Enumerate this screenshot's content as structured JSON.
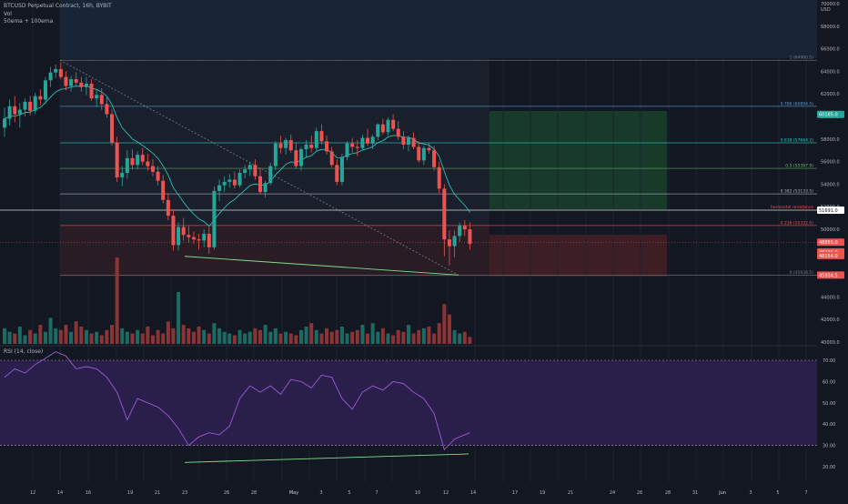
{
  "header": {
    "symbol": "BTCUSD Perpetual Contract, 16h, BYBIT",
    "vol_label": "Vol",
    "ema_label": "50ema + 100ema",
    "rsi_label": "RSI (14, close)"
  },
  "colors": {
    "background": "#131722",
    "up": "#26a69a",
    "down": "#ef5350",
    "ema": "#2bd0c4",
    "rsi": "#9c5ad6",
    "rsi_band": "#2a1f4a",
    "divergence": "#7ee08a",
    "long_target_zone": "#173a2a",
    "long_stop_zone": "#3d1e24",
    "upper_zone": "#172536"
  },
  "chart_data": [
    {
      "type": "candlestick",
      "title": "BTCUSD Perpetual Contract, 16h, BYBIT",
      "ylim": [
        39500,
        70000
      ],
      "x_tick_labels": [
        "12",
        "14",
        "16",
        "19",
        "21",
        "23",
        "26",
        "28",
        "May",
        "3",
        "5",
        "7",
        "10",
        "12",
        "14",
        "17",
        "19",
        "21",
        "24",
        "26",
        "28",
        "31",
        "Jun",
        "3",
        "5",
        "7"
      ],
      "y_tick_labels": [
        "40000.0",
        "42000.0",
        "44000.0",
        "46000.0",
        "48000.0",
        "50000.0",
        "52000.0",
        "54000.0",
        "56000.0",
        "58000.0",
        "60000.0",
        "62000.0",
        "64000.0",
        "66000.0",
        "68000.0",
        "70000.0"
      ],
      "unit_label": "USD",
      "candles": [
        [
          59000,
          60800,
          58200,
          59800
        ],
        [
          59800,
          61500,
          59200,
          60900
        ],
        [
          60900,
          61800,
          59500,
          60200
        ],
        [
          60200,
          61200,
          59000,
          60600
        ],
        [
          60600,
          61600,
          60000,
          61300
        ],
        [
          61300,
          61800,
          60100,
          60500
        ],
        [
          60500,
          62100,
          60200,
          61800
        ],
        [
          61800,
          62400,
          61000,
          61500
        ],
        [
          61500,
          63500,
          61100,
          63200
        ],
        [
          63200,
          64400,
          62600,
          63900
        ],
        [
          63900,
          64600,
          63400,
          64200
        ],
        [
          64200,
          64800,
          63300,
          63500
        ],
        [
          63500,
          64000,
          62300,
          62700
        ],
        [
          62700,
          63600,
          62200,
          63300
        ],
        [
          63300,
          63900,
          62700,
          63000
        ],
        [
          63000,
          63500,
          62200,
          62600
        ],
        [
          62600,
          63500,
          61900,
          62900
        ],
        [
          62900,
          63300,
          61400,
          61600
        ],
        [
          61600,
          62400,
          60800,
          61900
        ],
        [
          61900,
          62500,
          60600,
          61100
        ],
        [
          61100,
          61700,
          59900,
          60200
        ],
        [
          60200,
          60600,
          57400,
          57700
        ],
        [
          57700,
          58200,
          54200,
          54600
        ],
        [
          54600,
          55600,
          53800,
          55000
        ],
        [
          55000,
          57000,
          54500,
          56300
        ],
        [
          56300,
          57100,
          55300,
          55700
        ],
        [
          55700,
          56900,
          55300,
          56600
        ],
        [
          56600,
          57200,
          55700,
          56000
        ],
        [
          56000,
          56700,
          55200,
          55600
        ],
        [
          55600,
          56200,
          54700,
          55100
        ],
        [
          55100,
          55600,
          53900,
          54300
        ],
        [
          54300,
          54800,
          52300,
          52600
        ],
        [
          52600,
          53200,
          50800,
          51200
        ],
        [
          51200,
          51700,
          48100,
          48600
        ],
        [
          48600,
          50600,
          48100,
          50200
        ],
        [
          50200,
          51000,
          49000,
          49500
        ],
        [
          49500,
          50300,
          48800,
          49300
        ],
        [
          49300,
          49800,
          48700,
          49100
        ],
        [
          49100,
          49600,
          48200,
          49000
        ],
        [
          49000,
          50000,
          48400,
          49600
        ],
        [
          49600,
          50200,
          47800,
          48400
        ],
        [
          48400,
          53800,
          48200,
          53400
        ],
        [
          53400,
          54400,
          52500,
          53900
        ],
        [
          53900,
          54700,
          53300,
          54200
        ],
        [
          54200,
          54900,
          53700,
          54400
        ],
        [
          54400,
          55100,
          53600,
          53900
        ],
        [
          53900,
          55300,
          53700,
          55000
        ],
        [
          55000,
          55700,
          54500,
          55300
        ],
        [
          55300,
          56000,
          54700,
          55700
        ],
        [
          55700,
          56200,
          54400,
          54700
        ],
        [
          54700,
          55400,
          53100,
          53300
        ],
        [
          53300,
          54300,
          52800,
          54100
        ],
        [
          54100,
          55900,
          53900,
          55600
        ],
        [
          55600,
          57800,
          55200,
          57600
        ],
        [
          57600,
          58300,
          56700,
          57200
        ],
        [
          57200,
          58100,
          56600,
          57900
        ],
        [
          57900,
          58400,
          56800,
          57000
        ],
        [
          57000,
          57700,
          55400,
          55600
        ],
        [
          55600,
          57300,
          55200,
          57100
        ],
        [
          57100,
          57900,
          56400,
          57500
        ],
        [
          57500,
          58300,
          56800,
          57200
        ],
        [
          57200,
          59000,
          56900,
          58700
        ],
        [
          58700,
          59300,
          57500,
          57800
        ],
        [
          57800,
          58300,
          56600,
          56900
        ],
        [
          56900,
          57300,
          55500,
          55700
        ],
        [
          55700,
          56200,
          53900,
          54200
        ],
        [
          54200,
          56700,
          53900,
          56400
        ],
        [
          56400,
          57800,
          56100,
          57600
        ],
        [
          57600,
          58100,
          56800,
          57300
        ],
        [
          57300,
          57900,
          56500,
          57200
        ],
        [
          57200,
          58400,
          57000,
          58100
        ],
        [
          58100,
          58900,
          57400,
          57600
        ],
        [
          57600,
          58400,
          57100,
          58200
        ],
        [
          58200,
          59400,
          57900,
          59300
        ],
        [
          59300,
          59800,
          58400,
          58600
        ],
        [
          58600,
          59900,
          58300,
          59700
        ],
        [
          59700,
          60200,
          58700,
          58900
        ],
        [
          58900,
          59600,
          57900,
          58200
        ],
        [
          58200,
          58700,
          57100,
          57500
        ],
        [
          57500,
          58300,
          56900,
          58100
        ],
        [
          58100,
          58600,
          57100,
          57300
        ],
        [
          57300,
          57800,
          55900,
          56100
        ],
        [
          56100,
          57400,
          55700,
          57200
        ],
        [
          57200,
          57700,
          56700,
          57000
        ],
        [
          57000,
          57400,
          55200,
          55500
        ],
        [
          55500,
          56000,
          53200,
          53600
        ],
        [
          53600,
          54000,
          47600,
          49100
        ],
        [
          49100,
          49900,
          46800,
          48500
        ],
        [
          48500,
          49900,
          47500,
          49400
        ],
        [
          49400,
          50600,
          48900,
          50300
        ],
        [
          50300,
          50800,
          49400,
          50000
        ],
        [
          50000,
          50600,
          48200,
          48700
        ]
      ],
      "volume": [
        18,
        14,
        12,
        20,
        10,
        16,
        12,
        22,
        14,
        30,
        18,
        16,
        22,
        14,
        26,
        20,
        16,
        12,
        14,
        10,
        16,
        22,
        100,
        18,
        14,
        12,
        16,
        12,
        20,
        10,
        16,
        12,
        26,
        18,
        60,
        22,
        18,
        14,
        20,
        16,
        12,
        24,
        18,
        14,
        12,
        10,
        16,
        12,
        14,
        18,
        16,
        22,
        14,
        18,
        12,
        14,
        12,
        10,
        16,
        20,
        24,
        16,
        12,
        18,
        14,
        16,
        20,
        12,
        14,
        16,
        22,
        12,
        24,
        14,
        18,
        12,
        10,
        16,
        14,
        22,
        12,
        16,
        18,
        20,
        12,
        24,
        46,
        34,
        16,
        12,
        14,
        8
      ]
    },
    {
      "type": "line",
      "title": "RSI (14, close)",
      "ylim": [
        15,
        75
      ],
      "y_tick_labels": [
        "20.00",
        "30.00",
        "40.00",
        "50.00",
        "60.00",
        "70.00"
      ],
      "x": [
        0,
        2,
        4,
        6,
        8,
        10,
        12,
        14,
        16,
        18,
        20,
        22,
        24,
        26,
        28,
        30,
        32,
        34,
        36,
        38,
        40,
        42,
        44,
        46,
        48,
        50,
        52,
        54,
        56,
        58,
        60,
        62,
        64,
        66,
        68,
        70,
        72,
        74,
        76,
        78,
        80,
        82,
        84,
        86,
        88,
        90,
        91
      ],
      "values": [
        62,
        66,
        64,
        68,
        71,
        74,
        72,
        66,
        67,
        66,
        62,
        55,
        42,
        52,
        50,
        48,
        44,
        38,
        30,
        34,
        36,
        35,
        39,
        52,
        58,
        55,
        58,
        54,
        61,
        60,
        57,
        63,
        62,
        52,
        47,
        55,
        58,
        56,
        60,
        59,
        55,
        52,
        45,
        28,
        33,
        35,
        36
      ]
    }
  ],
  "annotations": {
    "fib_labels": [
      "1 (64980.5)",
      "0.786 (60894.5)",
      "0.618 (57664.2)",
      "0.5 (55397.9)",
      "0.382 (53133.5)",
      "0.236 (50332.0)",
      "0 (45938.5)"
    ],
    "horizontal_resistance_label": "horizontal resistance",
    "price_tags": [
      {
        "text": "60185.0",
        "color": "#26a69a"
      },
      {
        "text": "51691.0",
        "color": "#ffffff"
      },
      {
        "text": "48855.0",
        "color": "#ef5350"
      },
      {
        "text": "48236.0",
        "color": "#ef5350"
      },
      {
        "text": "48154.0",
        "color": "#ef5350"
      },
      {
        "text": "45934.5",
        "color": "#ef5350"
      }
    ]
  }
}
